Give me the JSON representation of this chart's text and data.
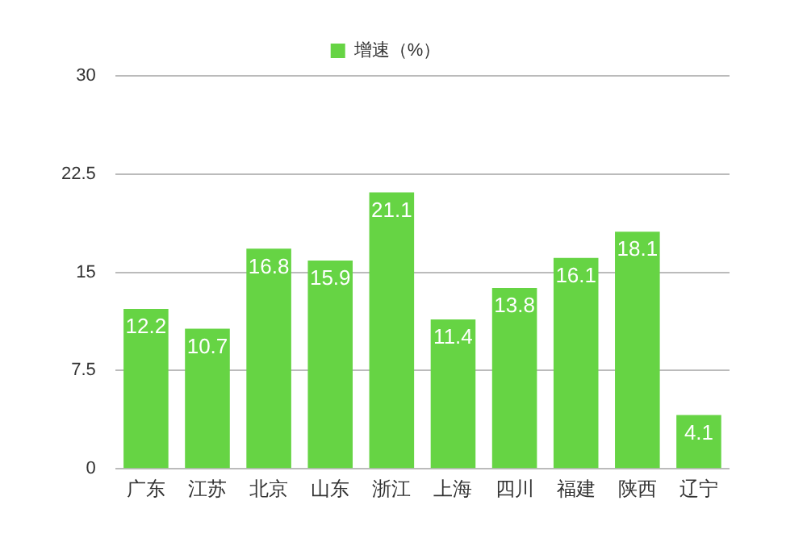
{
  "chart_data": {
    "type": "bar",
    "categories": [
      "广东",
      "江苏",
      "北京",
      "山东",
      "浙江",
      "上海",
      "四川",
      "福建",
      "陕西",
      "辽宁"
    ],
    "series": [
      {
        "name": "增速（%）",
        "color": "#66d444",
        "values": [
          12.2,
          10.7,
          16.8,
          15.9,
          21.1,
          11.4,
          13.8,
          16.1,
          18.1,
          4.1
        ]
      }
    ],
    "ylim": [
      0,
      30
    ],
    "yticks": [
      0,
      7.5,
      15,
      22.5,
      30
    ],
    "grid": "y",
    "legend": "top",
    "data_labels": true
  }
}
